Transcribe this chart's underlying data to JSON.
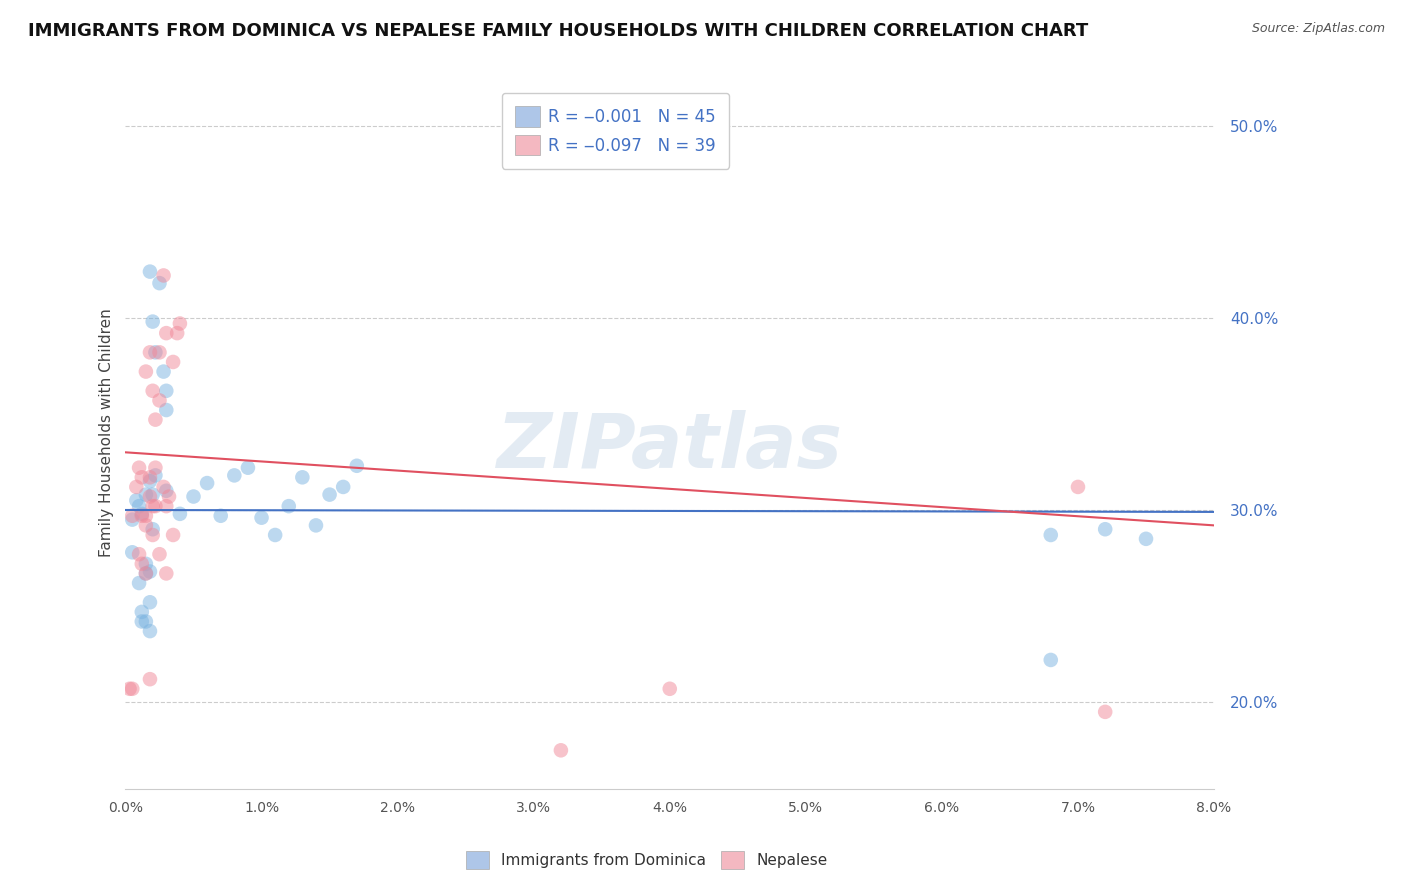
{
  "title": "IMMIGRANTS FROM DOMINICA VS NEPALESE FAMILY HOUSEHOLDS WITH CHILDREN CORRELATION CHART",
  "source": "Source: ZipAtlas.com",
  "ylabel": "Family Households with Children",
  "xlim": [
    0.0,
    0.08
  ],
  "ylim": [
    0.155,
    0.525
  ],
  "y_ticks": [
    0.2,
    0.3,
    0.4,
    0.5
  ],
  "y_tick_labels": [
    "20.0%",
    "30.0%",
    "40.0%",
    "50.0%"
  ],
  "x_ticks": [
    0.0,
    0.01,
    0.02,
    0.03,
    0.04,
    0.05,
    0.06,
    0.07,
    0.08
  ],
  "x_tick_labels": [
    "0.0%",
    "1.0%",
    "2.0%",
    "3.0%",
    "4.0%",
    "5.0%",
    "6.0%",
    "7.0%",
    "8.0%"
  ],
  "blue_scatter": [
    [
      0.001,
      0.302
    ],
    [
      0.002,
      0.308
    ],
    [
      0.003,
      0.31
    ],
    [
      0.004,
      0.298
    ],
    [
      0.005,
      0.307
    ],
    [
      0.006,
      0.314
    ],
    [
      0.007,
      0.297
    ],
    [
      0.008,
      0.318
    ],
    [
      0.009,
      0.322
    ],
    [
      0.01,
      0.296
    ],
    [
      0.011,
      0.287
    ],
    [
      0.012,
      0.302
    ],
    [
      0.013,
      0.317
    ],
    [
      0.014,
      0.292
    ],
    [
      0.015,
      0.308
    ],
    [
      0.016,
      0.312
    ],
    [
      0.017,
      0.323
    ],
    [
      0.0005,
      0.295
    ],
    [
      0.0008,
      0.305
    ],
    [
      0.0012,
      0.298
    ],
    [
      0.0015,
      0.308
    ],
    [
      0.0018,
      0.315
    ],
    [
      0.002,
      0.29
    ],
    [
      0.0022,
      0.318
    ],
    [
      0.0018,
      0.424
    ],
    [
      0.0022,
      0.382
    ],
    [
      0.0025,
      0.418
    ],
    [
      0.002,
      0.398
    ],
    [
      0.0028,
      0.372
    ],
    [
      0.003,
      0.352
    ],
    [
      0.003,
      0.362
    ],
    [
      0.001,
      0.262
    ],
    [
      0.0012,
      0.247
    ],
    [
      0.0015,
      0.267
    ],
    [
      0.0018,
      0.252
    ],
    [
      0.0015,
      0.242
    ],
    [
      0.0018,
      0.237
    ],
    [
      0.0012,
      0.242
    ],
    [
      0.0015,
      0.272
    ],
    [
      0.0018,
      0.268
    ],
    [
      0.0005,
      0.278
    ],
    [
      0.068,
      0.287
    ],
    [
      0.075,
      0.285
    ],
    [
      0.072,
      0.29
    ],
    [
      0.068,
      0.222
    ]
  ],
  "pink_scatter": [
    [
      0.0005,
      0.297
    ],
    [
      0.0008,
      0.312
    ],
    [
      0.001,
      0.322
    ],
    [
      0.0012,
      0.317
    ],
    [
      0.0015,
      0.297
    ],
    [
      0.0018,
      0.307
    ],
    [
      0.002,
      0.302
    ],
    [
      0.0022,
      0.322
    ],
    [
      0.0025,
      0.357
    ],
    [
      0.0028,
      0.312
    ],
    [
      0.003,
      0.302
    ],
    [
      0.0032,
      0.307
    ],
    [
      0.0035,
      0.377
    ],
    [
      0.0038,
      0.392
    ],
    [
      0.004,
      0.397
    ],
    [
      0.0015,
      0.372
    ],
    [
      0.0018,
      0.382
    ],
    [
      0.002,
      0.362
    ],
    [
      0.0022,
      0.347
    ],
    [
      0.0025,
      0.382
    ],
    [
      0.003,
      0.392
    ],
    [
      0.0028,
      0.422
    ],
    [
      0.0012,
      0.297
    ],
    [
      0.0015,
      0.292
    ],
    [
      0.0018,
      0.317
    ],
    [
      0.002,
      0.287
    ],
    [
      0.0022,
      0.302
    ],
    [
      0.0025,
      0.277
    ],
    [
      0.0005,
      0.207
    ],
    [
      0.003,
      0.267
    ],
    [
      0.0035,
      0.287
    ],
    [
      0.001,
      0.277
    ],
    [
      0.0012,
      0.272
    ],
    [
      0.0015,
      0.267
    ],
    [
      0.0018,
      0.212
    ],
    [
      0.032,
      0.175
    ],
    [
      0.04,
      0.207
    ],
    [
      0.0003,
      0.207
    ],
    [
      0.07,
      0.312
    ],
    [
      0.072,
      0.195
    ]
  ],
  "blue_line_x": [
    0.0,
    0.08
  ],
  "blue_line_y": [
    0.3,
    0.299
  ],
  "pink_line_x": [
    0.0,
    0.08
  ],
  "pink_line_y": [
    0.33,
    0.292
  ],
  "scatter_size": 110,
  "scatter_alpha": 0.5,
  "blue_color": "#7ab3e0",
  "pink_color": "#f08898",
  "blue_line_color": "#4472c4",
  "pink_line_color": "#e05060",
  "legend_box_blue": "#aec6e8",
  "legend_box_pink": "#f4b8c1",
  "grid_color": "#cccccc",
  "grid_style": "--",
  "background_color": "#ffffff",
  "watermark": "ZIPatlas",
  "title_fontsize": 13,
  "axis_label_fontsize": 11,
  "tick_fontsize": 10,
  "legend_fontsize": 12
}
